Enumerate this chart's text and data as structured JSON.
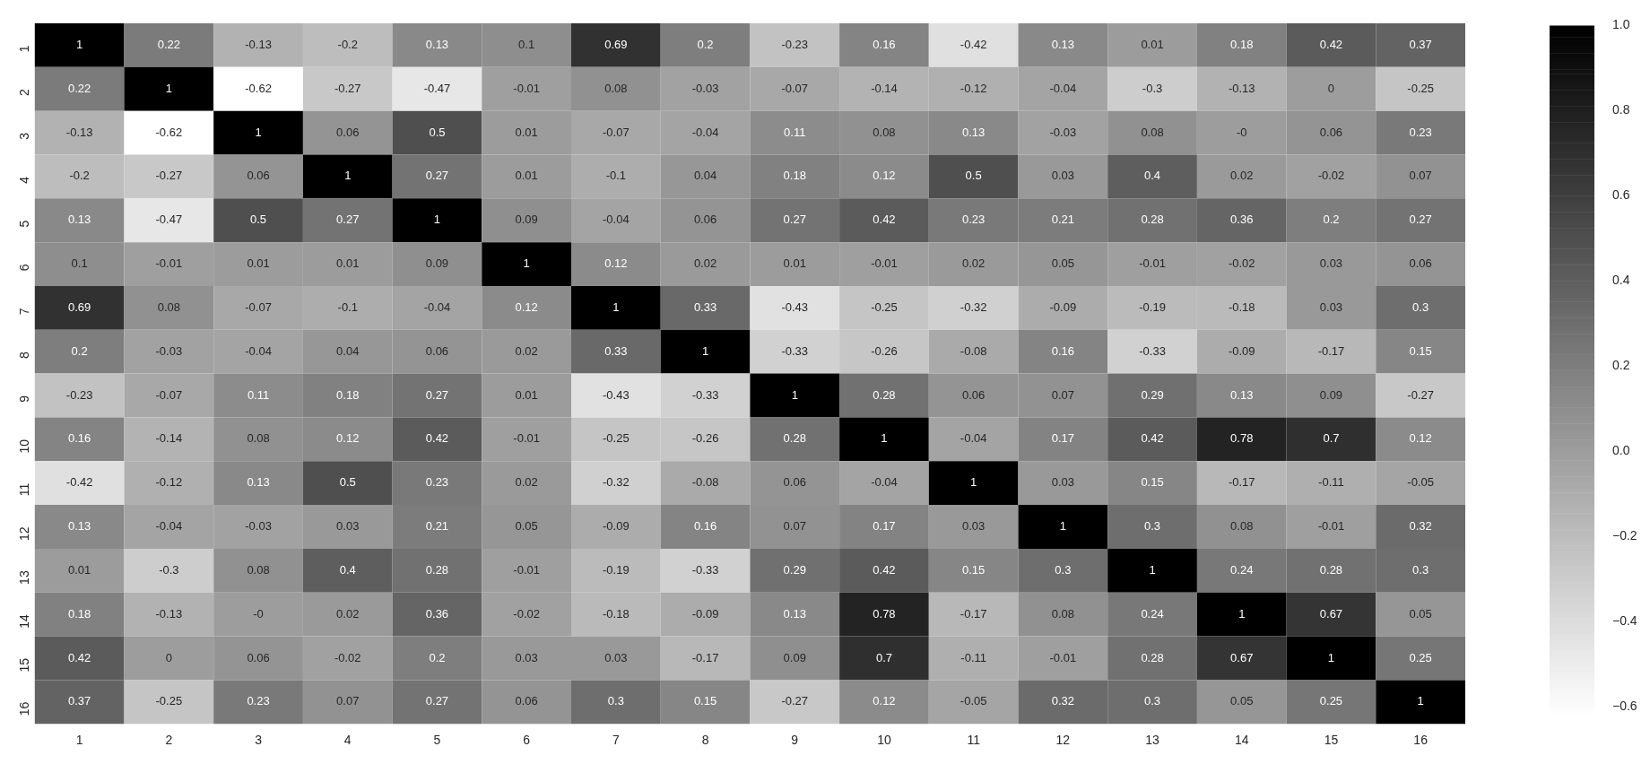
{
  "chart_data": {
    "type": "heatmap",
    "categories": [
      "1",
      "2",
      "3",
      "4",
      "5",
      "6",
      "7",
      "8",
      "9",
      "10",
      "11",
      "12",
      "13",
      "14",
      "15",
      "16"
    ],
    "y_categories": [
      "1",
      "2",
      "3",
      "4",
      "5",
      "6",
      "7",
      "8",
      "9",
      "10",
      "11",
      "12",
      "13",
      "14",
      "15",
      "16"
    ],
    "cells": [
      [
        1,
        0.22,
        -0.13,
        -0.2,
        0.13,
        0.1,
        0.69,
        0.2,
        -0.23,
        0.16,
        -0.42,
        0.13,
        0.01,
        0.18,
        0.42,
        0.37
      ],
      [
        0.22,
        1,
        -0.62,
        -0.27,
        -0.47,
        -0.01,
        0.08,
        -0.03,
        -0.07,
        -0.14,
        -0.12,
        -0.04,
        -0.3,
        -0.13,
        0,
        -0.25
      ],
      [
        -0.13,
        -0.62,
        1,
        0.06,
        0.5,
        0.01,
        -0.07,
        -0.04,
        0.11,
        0.08,
        0.13,
        -0.03,
        0.08,
        0,
        0.06,
        0.23
      ],
      [
        -0.2,
        -0.27,
        0.06,
        1,
        0.27,
        0.01,
        -0.1,
        0.04,
        0.18,
        0.12,
        0.5,
        0.03,
        0.4,
        0.02,
        -0.02,
        0.07
      ],
      [
        0.13,
        -0.47,
        0.5,
        0.27,
        1,
        0.09,
        -0.04,
        0.06,
        0.27,
        0.42,
        0.23,
        0.21,
        0.28,
        0.36,
        0.2,
        0.27
      ],
      [
        0.1,
        -0.01,
        0.01,
        0.01,
        0.09,
        1,
        0.12,
        0.02,
        0.01,
        -0.01,
        0.02,
        0.05,
        -0.01,
        -0.02,
        0.03,
        0.06
      ],
      [
        0.69,
        0.08,
        -0.07,
        -0.1,
        -0.04,
        0.12,
        1,
        0.33,
        -0.43,
        -0.25,
        -0.32,
        -0.09,
        -0.19,
        -0.18,
        0.03,
        0.3
      ],
      [
        0.2,
        -0.03,
        -0.04,
        0.04,
        0.06,
        0.02,
        0.33,
        1,
        -0.33,
        -0.26,
        -0.08,
        0.16,
        -0.33,
        -0.09,
        -0.17,
        0.15
      ],
      [
        -0.23,
        -0.07,
        0.11,
        0.18,
        0.27,
        0.01,
        -0.43,
        -0.33,
        1,
        0.28,
        0.06,
        0.07,
        0.29,
        0.13,
        0.09,
        -0.27
      ],
      [
        0.16,
        -0.14,
        0.08,
        0.12,
        0.42,
        -0.01,
        -0.25,
        -0.26,
        0.28,
        1,
        -0.04,
        0.17,
        0.42,
        0.78,
        0.7,
        0.12
      ],
      [
        -0.42,
        -0.12,
        0.13,
        0.5,
        0.23,
        0.02,
        -0.32,
        -0.08,
        0.06,
        -0.04,
        1,
        0.03,
        0.15,
        -0.17,
        -0.11,
        -0.05
      ],
      [
        0.13,
        -0.04,
        -0.03,
        0.03,
        0.21,
        0.05,
        -0.09,
        0.16,
        0.07,
        0.17,
        0.03,
        1,
        0.3,
        0.08,
        -0.01,
        0.32
      ],
      [
        0.01,
        -0.3,
        0.08,
        0.4,
        0.28,
        -0.01,
        -0.19,
        -0.33,
        0.29,
        0.42,
        0.15,
        0.3,
        1,
        0.24,
        0.28,
        0.3
      ],
      [
        0.18,
        -0.13,
        0,
        0.02,
        0.36,
        -0.02,
        -0.18,
        -0.09,
        0.13,
        0.78,
        -0.17,
        0.08,
        0.24,
        1,
        0.67,
        0.05
      ],
      [
        0.42,
        0,
        0.06,
        -0.02,
        0.2,
        0.03,
        0.03,
        -0.17,
        0.09,
        0.7,
        -0.11,
        -0.01,
        0.28,
        0.67,
        1,
        0.25
      ],
      [
        0.37,
        -0.25,
        0.23,
        0.07,
        0.27,
        0.06,
        0.3,
        0.15,
        -0.27,
        0.12,
        -0.05,
        0.32,
        0.3,
        0.05,
        0.25,
        1
      ]
    ],
    "cell_labels": [
      [
        "1",
        "0.22",
        "-0.13",
        "-0.2",
        "0.13",
        "0.1",
        "0.69",
        "0.2",
        "-0.23",
        "0.16",
        "-0.42",
        "0.13",
        "0.01",
        "0.18",
        "0.42",
        "0.37"
      ],
      [
        "0.22",
        "1",
        "-0.62",
        "-0.27",
        "-0.47",
        "-0.01",
        "0.08",
        "-0.03",
        "-0.07",
        "-0.14",
        "-0.12",
        "-0.04",
        "-0.3",
        "-0.13",
        "0",
        "-0.25"
      ],
      [
        "-0.13",
        "-0.62",
        "1",
        "0.06",
        "0.5",
        "0.01",
        "-0.07",
        "-0.04",
        "0.11",
        "0.08",
        "0.13",
        "-0.03",
        "0.08",
        "-0",
        "0.06",
        "0.23"
      ],
      [
        "-0.2",
        "-0.27",
        "0.06",
        "1",
        "0.27",
        "0.01",
        "-0.1",
        "0.04",
        "0.18",
        "0.12",
        "0.5",
        "0.03",
        "0.4",
        "0.02",
        "-0.02",
        "0.07"
      ],
      [
        "0.13",
        "-0.47",
        "0.5",
        "0.27",
        "1",
        "0.09",
        "-0.04",
        "0.06",
        "0.27",
        "0.42",
        "0.23",
        "0.21",
        "0.28",
        "0.36",
        "0.2",
        "0.27"
      ],
      [
        "0.1",
        "-0.01",
        "0.01",
        "0.01",
        "0.09",
        "1",
        "0.12",
        "0.02",
        "0.01",
        "-0.01",
        "0.02",
        "0.05",
        "-0.01",
        "-0.02",
        "0.03",
        "0.06"
      ],
      [
        "0.69",
        "0.08",
        "-0.07",
        "-0.1",
        "-0.04",
        "0.12",
        "1",
        "0.33",
        "-0.43",
        "-0.25",
        "-0.32",
        "-0.09",
        "-0.19",
        "-0.18",
        "0.03",
        "0.3"
      ],
      [
        "0.2",
        "-0.03",
        "-0.04",
        "0.04",
        "0.06",
        "0.02",
        "0.33",
        "1",
        "-0.33",
        "-0.26",
        "-0.08",
        "0.16",
        "-0.33",
        "-0.09",
        "-0.17",
        "0.15"
      ],
      [
        "-0.23",
        "-0.07",
        "0.11",
        "0.18",
        "0.27",
        "0.01",
        "-0.43",
        "-0.33",
        "1",
        "0.28",
        "0.06",
        "0.07",
        "0.29",
        "0.13",
        "0.09",
        "-0.27"
      ],
      [
        "0.16",
        "-0.14",
        "0.08",
        "0.12",
        "0.42",
        "-0.01",
        "-0.25",
        "-0.26",
        "0.28",
        "1",
        "-0.04",
        "0.17",
        "0.42",
        "0.78",
        "0.7",
        "0.12"
      ],
      [
        "-0.42",
        "-0.12",
        "0.13",
        "0.5",
        "0.23",
        "0.02",
        "-0.32",
        "-0.08",
        "0.06",
        "-0.04",
        "1",
        "0.03",
        "0.15",
        "-0.17",
        "-0.11",
        "-0.05"
      ],
      [
        "0.13",
        "-0.04",
        "-0.03",
        "0.03",
        "0.21",
        "0.05",
        "-0.09",
        "0.16",
        "0.07",
        "0.17",
        "0.03",
        "1",
        "0.3",
        "0.08",
        "-0.01",
        "0.32"
      ],
      [
        "0.01",
        "-0.3",
        "0.08",
        "0.4",
        "0.28",
        "-0.01",
        "-0.19",
        "-0.33",
        "0.29",
        "0.42",
        "0.15",
        "0.3",
        "1",
        "0.24",
        "0.28",
        "0.3"
      ],
      [
        "0.18",
        "-0.13",
        "-0",
        "0.02",
        "0.36",
        "-0.02",
        "-0.18",
        "-0.09",
        "0.13",
        "0.78",
        "-0.17",
        "0.08",
        "0.24",
        "1",
        "0.67",
        "0.05"
      ],
      [
        "0.42",
        "0",
        "0.06",
        "-0.02",
        "0.2",
        "0.03",
        "0.03",
        "-0.17",
        "0.09",
        "0.7",
        "-0.11",
        "-0.01",
        "0.28",
        "0.67",
        "1",
        "0.25"
      ],
      [
        "0.37",
        "-0.25",
        "0.23",
        "0.07",
        "0.27",
        "0.06",
        "0.3",
        "0.15",
        "-0.27",
        "0.12",
        "-0.05",
        "0.32",
        "0.3",
        "0.05",
        "0.25",
        "1"
      ]
    ],
    "clim": [
      -0.62,
      1
    ],
    "cticks": [
      {
        "value": -0.6,
        "label": "−0.6"
      },
      {
        "value": -0.4,
        "label": "−0.4"
      },
      {
        "value": -0.2,
        "label": "−0.2"
      },
      {
        "value": 0,
        "label": "0.0"
      },
      {
        "value": 0.2,
        "label": "0.2"
      },
      {
        "value": 0.4,
        "label": "0.4"
      },
      {
        "value": 0.6,
        "label": "0.6"
      },
      {
        "value": 0.8,
        "label": "0.8"
      },
      {
        "value": 1,
        "label": "1.0"
      }
    ],
    "data_labels": true
  }
}
